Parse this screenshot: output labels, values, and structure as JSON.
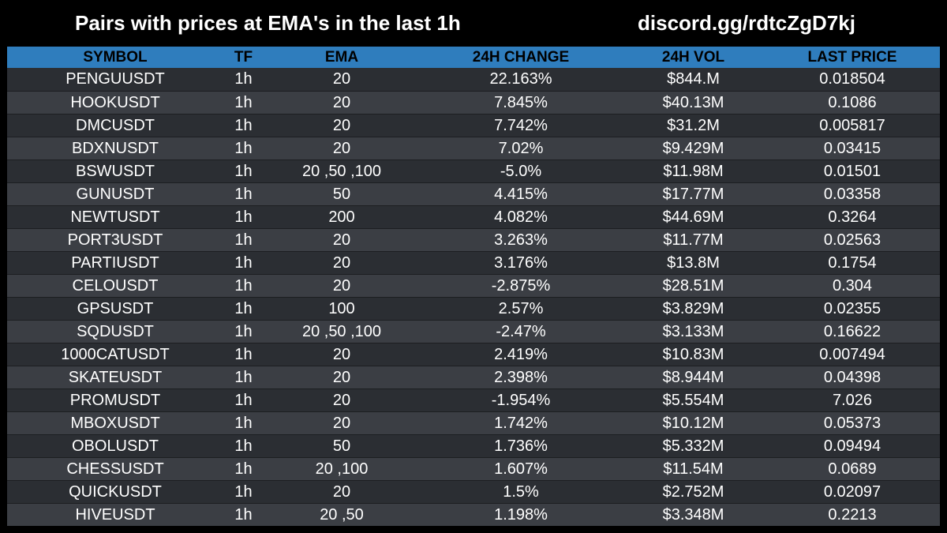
{
  "header": {
    "title": "Pairs with prices at EMA's in the last 1h",
    "link": "discord.gg/rdtcZgD7kj"
  },
  "colors": {
    "background": "#000000",
    "header_row": "#2f7dbd",
    "row_dark": "#2b2e33",
    "row_light": "#3b3e44"
  },
  "table": {
    "columns": [
      "SYMBOL",
      "TF",
      "EMA",
      "24H CHANGE",
      "24H VOL",
      "LAST PRICE"
    ],
    "rows": [
      [
        "PENGUUSDT",
        "1h",
        "20",
        "22.163%",
        "$844.M",
        "0.018504"
      ],
      [
        "HOOKUSDT",
        "1h",
        "20",
        "7.845%",
        "$40.13M",
        "0.1086"
      ],
      [
        "DMCUSDT",
        "1h",
        "20",
        "7.742%",
        "$31.2M",
        "0.005817"
      ],
      [
        "BDXNUSDT",
        "1h",
        "20",
        "7.02%",
        "$9.429M",
        "0.03415"
      ],
      [
        "BSWUSDT",
        "1h",
        "20 ,50 ,100",
        "-5.0%",
        "$11.98M",
        "0.01501"
      ],
      [
        "GUNUSDT",
        "1h",
        "50",
        "4.415%",
        "$17.77M",
        "0.03358"
      ],
      [
        "NEWTUSDT",
        "1h",
        "200",
        "4.082%",
        "$44.69M",
        "0.3264"
      ],
      [
        "PORT3USDT",
        "1h",
        "20",
        "3.263%",
        "$11.77M",
        "0.02563"
      ],
      [
        "PARTIUSDT",
        "1h",
        "20",
        "3.176%",
        "$13.8M",
        "0.1754"
      ],
      [
        "CELOUSDT",
        "1h",
        "20",
        "-2.875%",
        "$28.51M",
        "0.304"
      ],
      [
        "GPSUSDT",
        "1h",
        "100",
        "2.57%",
        "$3.829M",
        "0.02355"
      ],
      [
        "SQDUSDT",
        "1h",
        "20 ,50 ,100",
        "-2.47%",
        "$3.133M",
        "0.16622"
      ],
      [
        "1000CATUSDT",
        "1h",
        "20",
        "2.419%",
        "$10.83M",
        "0.007494"
      ],
      [
        "SKATEUSDT",
        "1h",
        "20",
        "2.398%",
        "$8.944M",
        "0.04398"
      ],
      [
        "PROMUSDT",
        "1h",
        "20",
        "-1.954%",
        "$5.554M",
        "7.026"
      ],
      [
        "MBOXUSDT",
        "1h",
        "20",
        "1.742%",
        "$10.12M",
        "0.05373"
      ],
      [
        "OBOLUSDT",
        "1h",
        "50",
        "1.736%",
        "$5.332M",
        "0.09494"
      ],
      [
        "CHESSUSDT",
        "1h",
        "20 ,100",
        "1.607%",
        "$11.54M",
        "0.0689"
      ],
      [
        "QUICKUSDT",
        "1h",
        "20",
        "1.5%",
        "$2.752M",
        "0.02097"
      ],
      [
        "HIVEUSDT",
        "1h",
        "20 ,50",
        "1.198%",
        "$3.348M",
        "0.2213"
      ]
    ]
  }
}
